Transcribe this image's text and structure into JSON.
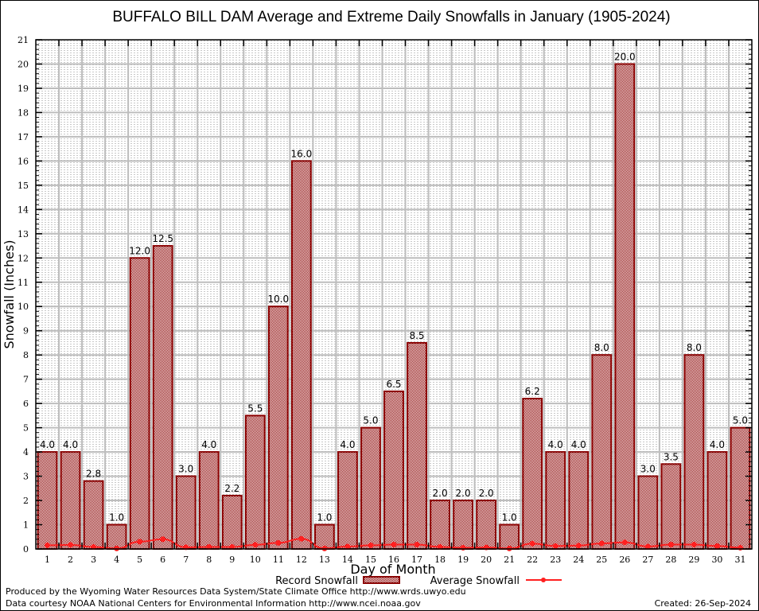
{
  "chart_data": {
    "type": "bar",
    "title": "BUFFALO BILL DAM Average and Extreme Daily Snowfalls in January (1905-2024)",
    "xlabel": "Day of Month",
    "ylabel": "Snowfall (Inches)",
    "ylim": [
      0,
      21
    ],
    "yticks": [
      0,
      1,
      2,
      3,
      4,
      5,
      6,
      7,
      8,
      9,
      10,
      11,
      12,
      13,
      14,
      15,
      16,
      17,
      18,
      19,
      20,
      21
    ],
    "grid": true,
    "categories": [
      "1",
      "2",
      "3",
      "4",
      "5",
      "6",
      "7",
      "8",
      "9",
      "10",
      "11",
      "12",
      "13",
      "14",
      "15",
      "16",
      "17",
      "18",
      "19",
      "20",
      "21",
      "22",
      "23",
      "24",
      "25",
      "26",
      "27",
      "28",
      "29",
      "30",
      "31"
    ],
    "series": [
      {
        "name": "Record Snowfall",
        "type": "bar",
        "color": "#8b0000",
        "values": [
          4.0,
          4.0,
          2.8,
          1.0,
          12.0,
          12.5,
          3.0,
          4.0,
          2.2,
          5.5,
          10.0,
          16.0,
          1.0,
          4.0,
          5.0,
          6.5,
          8.5,
          2.0,
          2.0,
          2.0,
          1.0,
          6.2,
          4.0,
          4.0,
          8.0,
          20.0,
          3.0,
          3.5,
          8.0,
          4.0,
          5.0
        ],
        "labels": [
          "4.0",
          "4.0",
          "2.8",
          "1.0",
          "12.0",
          "12.5",
          "3.0",
          "4.0",
          "2.2",
          "5.5",
          "10.0",
          "16.0",
          "1.0",
          "4.0",
          "5.0",
          "6.5",
          "8.5",
          "2.0",
          "2.0",
          "2.0",
          "1.0",
          "6.2",
          "4.0",
          "4.0",
          "8.0",
          "20.0",
          "3.0",
          "3.5",
          "8.0",
          "4.0",
          "5.0"
        ]
      },
      {
        "name": "Average Snowfall",
        "type": "line",
        "color": "#ff2020",
        "values": [
          0.15,
          0.17,
          0.08,
          0.02,
          0.3,
          0.4,
          0.07,
          0.08,
          0.08,
          0.17,
          0.25,
          0.42,
          0.02,
          0.1,
          0.15,
          0.18,
          0.18,
          0.08,
          0.05,
          0.06,
          0.02,
          0.22,
          0.12,
          0.14,
          0.23,
          0.27,
          0.1,
          0.18,
          0.18,
          0.12,
          0.05
        ]
      }
    ],
    "legend": {
      "placement": "bottom-center"
    }
  },
  "footer": {
    "line1": "Produced by the Wyoming Water Resources Data System/State Climate Office http://www.wrds.uwyo.edu",
    "line2": "Data courtesy NOAA National Centers for Environmental Information http://www.ncei.noaa.gov",
    "created": "Created:  26-Sep-2024"
  }
}
